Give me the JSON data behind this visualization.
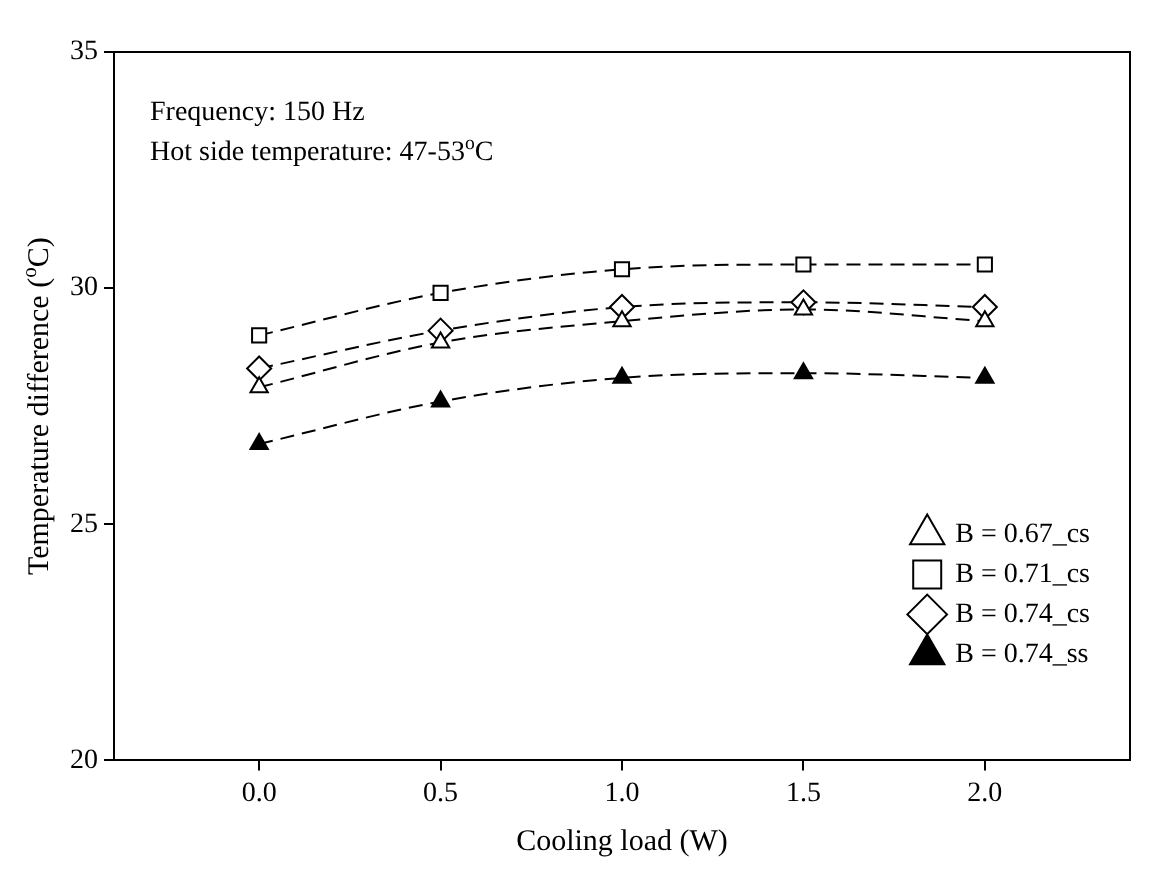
{
  "chart_data": {
    "type": "line",
    "xlabel": "Cooling load (W)",
    "ylabel": "Temperature difference ($^{o}$C)",
    "x": [
      0,
      0.5,
      1,
      1.5,
      2
    ],
    "series": [
      {
        "name": "B = 0.67_cs",
        "color": "#000000",
        "marker": "triangle",
        "values": [
          27.9,
          28.85,
          29.3,
          29.55,
          29.3
        ]
      },
      {
        "name": "B = 0.71_cs",
        "color": "#000000",
        "marker": "square",
        "values": [
          29.0,
          29.9,
          30.4,
          30.5,
          30.5
        ]
      },
      {
        "name": "B = 0.74_cs",
        "color": "#000000",
        "marker": "diamond",
        "values": [
          28.3,
          29.1,
          29.6,
          29.7,
          29.6
        ]
      },
      {
        "name": "B = 0.74_ss",
        "color": "#000000",
        "marker": "triangle_filled",
        "values": [
          26.7,
          27.6,
          28.1,
          28.2,
          28.1
        ]
      }
    ],
    "xlim": [
      -0.4,
      2.4
    ],
    "xticks": [
      {
        "value": 0,
        "label": "0.0"
      },
      {
        "value": 0.5,
        "label": "0.5"
      },
      {
        "value": 1,
        "label": "1.0"
      },
      {
        "value": 1.5,
        "label": "1.5"
      },
      {
        "value": 2,
        "label": "2.0"
      }
    ],
    "ylim": [
      20,
      35
    ],
    "yticks": [
      20,
      25,
      30,
      35
    ],
    "annotations": [
      "Frequency: 150 Hz",
      "Hot side temperature: 47-53$^{o}$C"
    ],
    "legend": "bottom right",
    "grid": false,
    "line_style": "dashed"
  }
}
